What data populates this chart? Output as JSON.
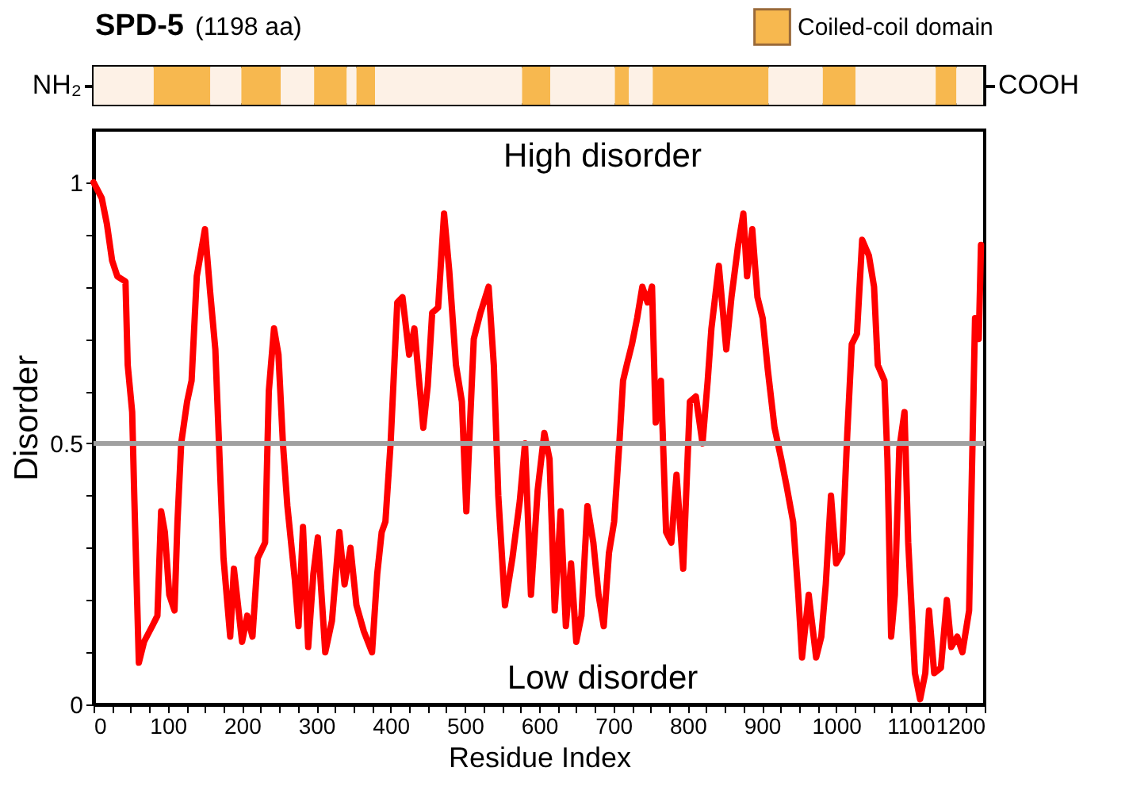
{
  "chart_data": [
    {
      "type": "bar",
      "orientation": "horizontal",
      "stacked": true,
      "title": "SPD-5",
      "subtitle": "(1198 aa)",
      "xlim": [
        0,
        1200
      ],
      "tick_labels": false,
      "legend": "top right",
      "annotations": [
        "NH₂",
        "COOH"
      ],
      "categories": [
        null
      ],
      "series": [
        {
          "color": "#fdf1e6",
          "values": [
            81
          ]
        },
        {
          "name": "Coiled-coil domain",
          "color": "#f7b84f",
          "values": [
            76
          ]
        },
        {
          "color": "#fdf1e6",
          "values": [
            42
          ]
        },
        {
          "color": "#f7b84f",
          "values": [
            53
          ]
        },
        {
          "color": "#fdf1e6",
          "values": [
            45
          ]
        },
        {
          "color": "#f7b84f",
          "values": [
            44
          ]
        },
        {
          "color": "#fdf1e6",
          "values": [
            13
          ]
        },
        {
          "color": "#f7b84f",
          "values": [
            25
          ]
        },
        {
          "color": "#fdf1e6",
          "values": [
            198
          ]
        },
        {
          "color": "#f7b84f",
          "values": [
            38
          ]
        },
        {
          "color": "#fdf1e6",
          "values": [
            87
          ]
        },
        {
          "color": "#f7b84f",
          "values": [
            19
          ]
        },
        {
          "color": "#fdf1e6",
          "values": [
            32
          ]
        },
        {
          "color": "#f7b84f",
          "values": [
            156
          ]
        },
        {
          "color": "#fdf1e6",
          "values": [
            73
          ]
        },
        {
          "color": "#f7b84f",
          "values": [
            44
          ]
        },
        {
          "color": "#fdf1e6",
          "values": [
            108
          ]
        },
        {
          "color": "#f7b84f",
          "values": [
            28
          ]
        },
        {
          "color": "#fdf1e6",
          "values": [
            36
          ]
        }
      ]
    },
    {
      "type": "line",
      "xlabel": "Residue Index",
      "ylabel": "Disorder",
      "xlim": [
        0,
        1200
      ],
      "ylim": [
        0,
        1.1
      ],
      "grid": false,
      "marker": "none",
      "line_style": "solid",
      "annotations": [
        "High disorder",
        "Low disorder"
      ],
      "ref_lines": [
        {
          "axis": "y",
          "value": 0.5,
          "color": "#a0a0a0"
        }
      ],
      "xticks": [
        0,
        {
          "value": 25,
          "label": null
        },
        {
          "value": 50,
          "label": null
        },
        {
          "value": 75,
          "label": null
        },
        100,
        {
          "value": 125,
          "label": null
        },
        {
          "value": 150,
          "label": null
        },
        {
          "value": 175,
          "label": null
        },
        200,
        {
          "value": 225,
          "label": null
        },
        {
          "value": 250,
          "label": null
        },
        {
          "value": 275,
          "label": null
        },
        300,
        {
          "value": 325,
          "label": null
        },
        {
          "value": 350,
          "label": null
        },
        {
          "value": 375,
          "label": null
        },
        400,
        {
          "value": 425,
          "label": null
        },
        {
          "value": 450,
          "label": null
        },
        {
          "value": 475,
          "label": null
        },
        500,
        {
          "value": 525,
          "label": null
        },
        {
          "value": 550,
          "label": null
        },
        {
          "value": 575,
          "label": null
        },
        600,
        {
          "value": 625,
          "label": null
        },
        {
          "value": 650,
          "label": null
        },
        {
          "value": 675,
          "label": null
        },
        700,
        {
          "value": 725,
          "label": null
        },
        {
          "value": 750,
          "label": null
        },
        {
          "value": 775,
          "label": null
        },
        800,
        {
          "value": 825,
          "label": null
        },
        {
          "value": 850,
          "label": null
        },
        {
          "value": 875,
          "label": null
        },
        900,
        {
          "value": 925,
          "label": null
        },
        {
          "value": 950,
          "label": null
        },
        {
          "value": 975,
          "label": null
        },
        1000,
        {
          "value": 1025,
          "label": null
        },
        {
          "value": 1050,
          "label": null
        },
        {
          "value": 1075,
          "label": null
        },
        1100,
        {
          "value": 1125,
          "label": null
        },
        {
          "value": 1150,
          "label": null
        },
        {
          "value": 1175,
          "label": null
        },
        1200
      ],
      "yticks": [
        0,
        {
          "value": 0.1,
          "label": null
        },
        {
          "value": 0.2,
          "label": null
        },
        {
          "value": 0.3,
          "label": null
        },
        {
          "value": 0.4,
          "label": null
        },
        0.5,
        {
          "value": 0.6,
          "label": null
        },
        {
          "value": 0.7,
          "label": null
        },
        {
          "value": 0.8,
          "label": null
        },
        {
          "value": 0.9,
          "label": null
        },
        1
      ],
      "series": [
        {
          "color": "#ff0000",
          "x": [
            0,
            11,
            18,
            25,
            32,
            43,
            46,
            52,
            55,
            61,
            68,
            79,
            86,
            91,
            96,
            102,
            109,
            113,
            118,
            126,
            132,
            139,
            150,
            157,
            164,
            170,
            175,
            184,
            189,
            200,
            207,
            214,
            221,
            231,
            236,
            243,
            249,
            255,
            261,
            271,
            276,
            282,
            289,
            296,
            302,
            312,
            321,
            331,
            338,
            346,
            354,
            364,
            375,
            382,
            388,
            393,
            400,
            409,
            416,
            425,
            432,
            439,
            444,
            450,
            456,
            464,
            472,
            479,
            488,
            496,
            502,
            507,
            512,
            521,
            532,
            539,
            545,
            554,
            564,
            574,
            581,
            589,
            598,
            607,
            614,
            621,
            629,
            636,
            643,
            650,
            657,
            665,
            673,
            680,
            687,
            694,
            701,
            708,
            713,
            718,
            725,
            732,
            739,
            746,
            752,
            757,
            764,
            771,
            778,
            785,
            794,
            803,
            811,
            820,
            827,
            832,
            842,
            852,
            859,
            868,
            875,
            880,
            887,
            894,
            901,
            908,
            917,
            926,
            933,
            942,
            949,
            954,
            963,
            973,
            980,
            986,
            993,
            1000,
            1008,
            1015,
            1021,
            1028,
            1035,
            1044,
            1051,
            1056,
            1065,
            1069,
            1074,
            1079,
            1085,
            1092,
            1097,
            1106,
            1113,
            1120,
            1125,
            1132,
            1141,
            1149,
            1155,
            1163,
            1170,
            1179,
            1187,
            1192,
            1195
          ],
          "values": [
            1.0,
            0.97,
            0.92,
            0.85,
            0.82,
            0.81,
            0.65,
            0.56,
            0.39,
            0.08,
            0.12,
            0.15,
            0.17,
            0.37,
            0.33,
            0.21,
            0.18,
            0.35,
            0.5,
            0.58,
            0.62,
            0.82,
            0.91,
            0.79,
            0.68,
            0.46,
            0.28,
            0.13,
            0.26,
            0.12,
            0.17,
            0.13,
            0.28,
            0.31,
            0.6,
            0.72,
            0.67,
            0.5,
            0.38,
            0.24,
            0.15,
            0.34,
            0.11,
            0.25,
            0.32,
            0.1,
            0.16,
            0.33,
            0.23,
            0.3,
            0.19,
            0.14,
            0.1,
            0.25,
            0.33,
            0.35,
            0.5,
            0.77,
            0.78,
            0.67,
            0.72,
            0.61,
            0.53,
            0.61,
            0.75,
            0.76,
            0.94,
            0.83,
            0.65,
            0.58,
            0.37,
            0.54,
            0.7,
            0.75,
            0.8,
            0.65,
            0.4,
            0.19,
            0.28,
            0.39,
            0.5,
            0.21,
            0.41,
            0.52,
            0.47,
            0.18,
            0.37,
            0.15,
            0.27,
            0.12,
            0.17,
            0.38,
            0.31,
            0.21,
            0.15,
            0.29,
            0.35,
            0.5,
            0.62,
            0.65,
            0.69,
            0.74,
            0.8,
            0.77,
            0.8,
            0.54,
            0.62,
            0.33,
            0.31,
            0.44,
            0.26,
            0.58,
            0.59,
            0.5,
            0.62,
            0.72,
            0.84,
            0.68,
            0.78,
            0.88,
            0.94,
            0.82,
            0.91,
            0.78,
            0.74,
            0.64,
            0.53,
            0.47,
            0.42,
            0.35,
            0.21,
            0.09,
            0.21,
            0.09,
            0.13,
            0.23,
            0.4,
            0.27,
            0.29,
            0.52,
            0.69,
            0.71,
            0.89,
            0.86,
            0.8,
            0.65,
            0.62,
            0.47,
            0.13,
            0.21,
            0.49,
            0.56,
            0.31,
            0.06,
            0.01,
            0.06,
            0.18,
            0.06,
            0.07,
            0.2,
            0.11,
            0.13,
            0.1,
            0.18,
            0.74,
            0.7,
            0.88
          ]
        }
      ]
    }
  ]
}
